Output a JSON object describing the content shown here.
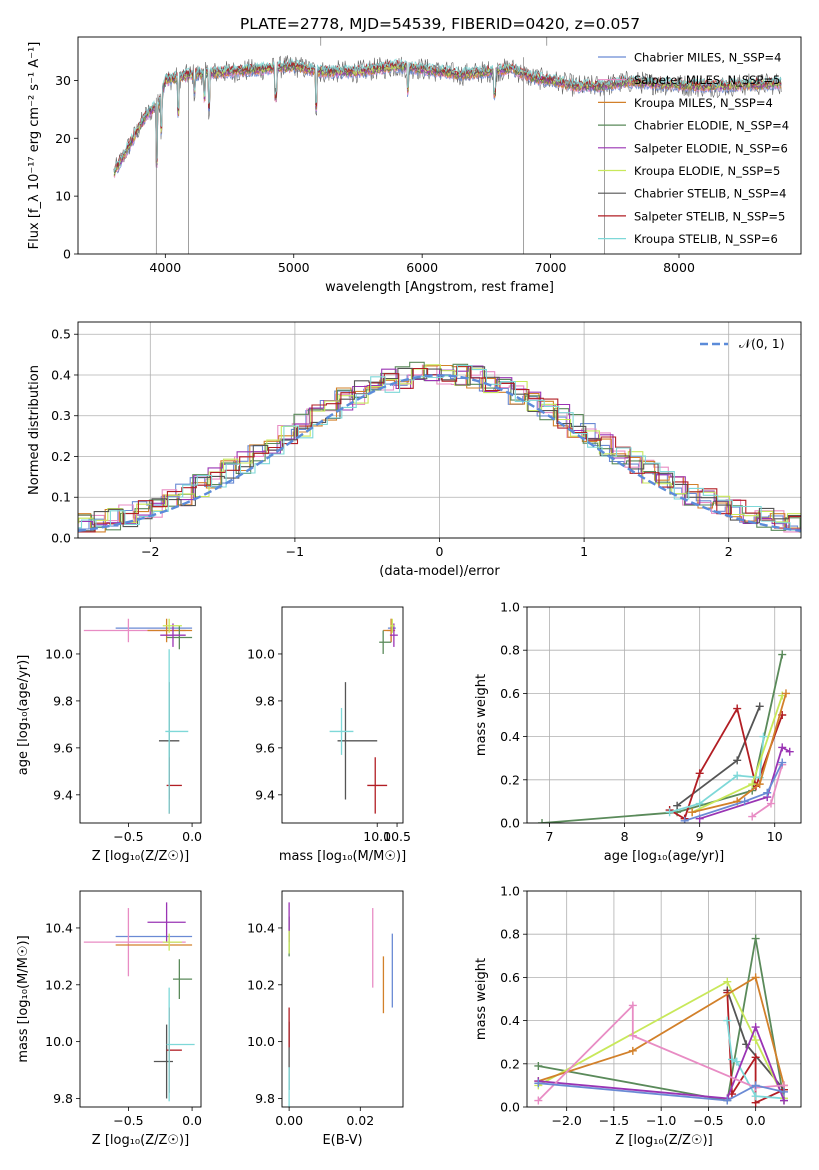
{
  "figure": {
    "title": "PLATE=2778, MJD=54539, FIBERID=0420, z=0.057"
  },
  "chart_data": [
    {
      "id": "spectrum",
      "type": "line",
      "xlabel": "wavelength [Angstrom, rest frame]",
      "ylabel": "Flux [f_λ 10⁻¹⁷ erg cm⁻² s⁻¹ A⁻¹]",
      "xlim": [
        3320,
        8950
      ],
      "ylim": [
        0,
        37.5
      ],
      "xticks": [
        4000,
        5000,
        6000,
        7000,
        8000
      ],
      "yticks": [
        0,
        10,
        20,
        30
      ],
      "grid": false,
      "legend_position": "top-right",
      "series": [
        {
          "name": "Chabrier MILES, N_SSP=4",
          "color": "#6a8ad4"
        },
        {
          "name": "Salpeter MILES, N_SSP=5",
          "color": "#e88cc4"
        },
        {
          "name": "Kroupa MILES, N_SSP=4",
          "color": "#d2802a"
        },
        {
          "name": "Chabrier ELODIE, N_SSP=4",
          "color": "#5a8a5a"
        },
        {
          "name": "Salpeter ELODIE, N_SSP=6",
          "color": "#9a34b4"
        },
        {
          "name": "Kroupa ELODIE, N_SSP=5",
          "color": "#c8e85a"
        },
        {
          "name": "Chabrier STELIB, N_SSP=4",
          "color": "#555555"
        },
        {
          "name": "Salpeter STELIB, N_SSP=5",
          "color": "#b21e24"
        },
        {
          "name": "Kroupa STELIB, N_SSP=6",
          "color": "#7ed8d8"
        }
      ],
      "continuum": [
        [
          3600,
          14
        ],
        [
          3750,
          20
        ],
        [
          3850,
          24
        ],
        [
          3950,
          26
        ],
        [
          4000,
          30
        ],
        [
          4200,
          31
        ],
        [
          4500,
          31.5
        ],
        [
          4800,
          32
        ],
        [
          5000,
          32.5
        ],
        [
          5200,
          31.5
        ],
        [
          5500,
          31.5
        ],
        [
          5800,
          32.5
        ],
        [
          6000,
          32
        ],
        [
          6300,
          31
        ],
        [
          6500,
          31.5
        ],
        [
          6700,
          32
        ],
        [
          6850,
          30.5
        ],
        [
          7000,
          30
        ],
        [
          7200,
          29
        ],
        [
          7400,
          29
        ],
        [
          7600,
          29.8
        ],
        [
          7900,
          29.3
        ],
        [
          8200,
          29
        ],
        [
          8500,
          29.2
        ],
        [
          8800,
          29.5
        ]
      ],
      "data_series_color": "#666666",
      "model_color": "#7ed8d8"
    },
    {
      "id": "residuals",
      "type": "histogram",
      "xlabel": "(data-model)/error",
      "ylabel": "Normed distribution",
      "xlim": [
        -2.5,
        2.5
      ],
      "ylim": [
        0,
        0.53
      ],
      "xticks": [
        -2,
        -1,
        0,
        1,
        2
      ],
      "yticks": [
        0.0,
        0.1,
        0.2,
        0.3,
        0.4,
        0.5
      ],
      "grid": true,
      "legend_position": "top-right",
      "legend": [
        {
          "name": "𝒩(0, 1)",
          "color": "#5b8bd9",
          "style": "dashed"
        }
      ],
      "bin_width": 0.1,
      "series_colors": [
        "#6a8ad4",
        "#e88cc4",
        "#d2802a",
        "#5a8a5a",
        "#9a34b4",
        "#c8e85a",
        "#555555",
        "#b21e24",
        "#7ed8d8"
      ]
    },
    {
      "id": "age-vs-Z",
      "type": "errorbar",
      "xlabel": "Z [log₁₀(Z/Z☉)]",
      "ylabel": "age  [log₁₀(age/yr)]",
      "xlim": [
        -0.88,
        0.07
      ],
      "ylim": [
        9.28,
        10.2
      ],
      "xticks": [
        -0.5,
        0.0
      ],
      "yticks": [
        9.4,
        9.6,
        9.8,
        10.0
      ],
      "points": [
        {
          "x": -0.3,
          "xerr_lo": 0.3,
          "xerr_hi": 0.3,
          "y": 10.11,
          "yerr": 0.0,
          "color": "#6a8ad4"
        },
        {
          "x": -0.5,
          "xerr_lo": 0.35,
          "xerr_hi": 0.45,
          "y": 10.1,
          "yerr": 0.05,
          "color": "#e88cc4"
        },
        {
          "x": -0.2,
          "xerr_lo": 0.15,
          "xerr_hi": 0.2,
          "y": 10.1,
          "yerr": 0.05,
          "color": "#d2802a"
        },
        {
          "x": -0.1,
          "xerr_lo": 0.1,
          "xerr_hi": 0.1,
          "y": 10.07,
          "yerr": 0.05,
          "color": "#5a8a5a"
        },
        {
          "x": -0.15,
          "xerr_lo": 0.1,
          "xerr_hi": 0.1,
          "y": 10.08,
          "yerr": 0.05,
          "color": "#9a34b4"
        },
        {
          "x": -0.18,
          "xerr_lo": 0.05,
          "xerr_hi": 0.1,
          "y": 10.12,
          "yerr": 0.03,
          "color": "#c8e85a"
        },
        {
          "x": -0.18,
          "xerr_lo": 0.08,
          "xerr_hi": 0.08,
          "y": 9.63,
          "yerr": 0.25,
          "color": "#555555"
        },
        {
          "x": -0.18,
          "xerr_lo": 0.02,
          "xerr_hi": 0.1,
          "y": 9.44,
          "yerr": 0.12,
          "color": "#b21e24"
        },
        {
          "x": -0.18,
          "xerr_lo": 0.03,
          "xerr_hi": 0.15,
          "y": 9.67,
          "yerr": 0.35,
          "color": "#7ed8d8"
        }
      ]
    },
    {
      "id": "age-vs-mass",
      "type": "errorbar",
      "xlabel": "mass [log₁₀(M/M☉)]",
      "ylabel": "",
      "xlim": [
        7.6,
        10.65
      ],
      "ylim": [
        9.28,
        10.2
      ],
      "xticks": [
        7.5,
        10.0,
        10.5
      ],
      "xticklabels": [
        "",
        "10.0",
        "10.5"
      ],
      "yticks": [
        9.4,
        9.6,
        9.8,
        10.0
      ],
      "points": [
        {
          "x": 10.37,
          "xerr_lo": 0.1,
          "xerr_hi": 0.1,
          "y": 10.11,
          "yerr": 0.0,
          "color": "#6a8ad4"
        },
        {
          "x": 10.35,
          "xerr_lo": 0.1,
          "xerr_hi": 0.1,
          "y": 10.1,
          "yerr": 0.05,
          "color": "#e88cc4"
        },
        {
          "x": 10.35,
          "xerr_lo": 0.2,
          "xerr_hi": 0.1,
          "y": 10.1,
          "yerr": 0.05,
          "color": "#d2802a"
        },
        {
          "x": 10.15,
          "xerr_lo": 0.1,
          "xerr_hi": 0.2,
          "y": 10.05,
          "yerr": 0.05,
          "color": "#5a8a5a"
        },
        {
          "x": 10.42,
          "xerr_lo": 0.1,
          "xerr_hi": 0.1,
          "y": 10.08,
          "yerr": 0.05,
          "color": "#9a34b4"
        },
        {
          "x": 10.38,
          "xerr_lo": 0.05,
          "xerr_hi": 0.05,
          "y": 10.12,
          "yerr": 0.03,
          "color": "#c8e85a"
        },
        {
          "x": 9.2,
          "xerr_lo": 0.2,
          "xerr_hi": 0.8,
          "y": 9.63,
          "yerr": 0.25,
          "color": "#555555"
        },
        {
          "x": 9.95,
          "xerr_lo": 0.2,
          "xerr_hi": 0.3,
          "y": 9.44,
          "yerr": 0.12,
          "color": "#b21e24"
        },
        {
          "x": 9.1,
          "xerr_lo": 0.3,
          "xerr_hi": 0.3,
          "y": 9.67,
          "yerr": 0.1,
          "color": "#7ed8d8"
        }
      ]
    },
    {
      "id": "weight-vs-age",
      "type": "line",
      "xlabel": "age  [log₁₀(age/yr)]",
      "ylabel": "mass weight",
      "xlim": [
        6.7,
        10.35
      ],
      "ylim": [
        0,
        1.0
      ],
      "xticks": [
        7,
        8,
        9,
        10
      ],
      "yticks": [
        0.0,
        0.2,
        0.4,
        0.6,
        0.8,
        1.0
      ],
      "grid": true,
      "series": [
        {
          "color": "#5a8a5a",
          "points": [
            [
              6.9,
              0
            ],
            [
              8.7,
              0.05
            ],
            [
              9.7,
              0.15
            ],
            [
              10.1,
              0.78
            ]
          ]
        },
        {
          "color": "#555555",
          "points": [
            [
              8.7,
              0.08
            ],
            [
              9.5,
              0.29
            ],
            [
              9.8,
              0.54
            ]
          ]
        },
        {
          "color": "#b21e24",
          "points": [
            [
              8.6,
              0.06
            ],
            [
              8.8,
              0.02
            ],
            [
              9.0,
              0.23
            ],
            [
              9.5,
              0.53
            ],
            [
              9.75,
              0.17
            ],
            [
              10.1,
              0.5
            ]
          ]
        },
        {
          "color": "#7ed8d8",
          "points": [
            [
              8.6,
              0.05
            ],
            [
              9.0,
              0.09
            ],
            [
              9.5,
              0.22
            ],
            [
              9.8,
              0.21
            ],
            [
              9.85,
              0.4
            ]
          ]
        },
        {
          "color": "#c8e85a",
          "points": [
            [
              8.9,
              0.05
            ],
            [
              9.7,
              0.18
            ],
            [
              10.1,
              0.59
            ]
          ]
        },
        {
          "color": "#d2802a",
          "points": [
            [
              8.9,
              0.05
            ],
            [
              9.5,
              0.1
            ],
            [
              9.8,
              0.18
            ],
            [
              10.15,
              0.6
            ]
          ]
        },
        {
          "color": "#9a34b4",
          "points": [
            [
              9.0,
              0.02
            ],
            [
              9.9,
              0.12
            ],
            [
              10.1,
              0.35
            ],
            [
              10.2,
              0.33
            ]
          ]
        },
        {
          "color": "#e88cc4",
          "points": [
            [
              9.7,
              0.03
            ],
            [
              9.95,
              0.09
            ],
            [
              10.1,
              0.27
            ]
          ]
        },
        {
          "color": "#6a8ad4",
          "points": [
            [
              8.8,
              0.01
            ],
            [
              9.6,
              0.1
            ],
            [
              9.9,
              0.14
            ],
            [
              10.1,
              0.28
            ]
          ]
        }
      ]
    },
    {
      "id": "mass-vs-Z",
      "type": "errorbar",
      "xlabel": "Z [log₁₀(Z/Z☉)]",
      "ylabel": "mass [log₁₀(M/M☉)]",
      "xlim": [
        -0.88,
        0.07
      ],
      "ylim": [
        9.77,
        10.53
      ],
      "xticks": [
        -0.5,
        0.0
      ],
      "yticks": [
        9.8,
        10.0,
        10.2,
        10.4
      ],
      "points": [
        {
          "x": -0.3,
          "xerr_lo": 0.3,
          "xerr_hi": 0.3,
          "y": 10.37,
          "yerr": 0.0,
          "color": "#6a8ad4"
        },
        {
          "x": -0.5,
          "xerr_lo": 0.35,
          "xerr_hi": 0.45,
          "y": 10.35,
          "yerr": 0.12,
          "color": "#e88cc4"
        },
        {
          "x": -0.3,
          "xerr_lo": 0.3,
          "xerr_hi": 0.3,
          "y": 10.34,
          "yerr": 0.0,
          "color": "#d2802a"
        },
        {
          "x": -0.1,
          "xerr_lo": 0.05,
          "xerr_hi": 0.1,
          "y": 10.22,
          "yerr": 0.07,
          "color": "#5a8a5a"
        },
        {
          "x": -0.2,
          "xerr_lo": 0.15,
          "xerr_hi": 0.15,
          "y": 10.42,
          "yerr": 0.07,
          "color": "#9a34b4"
        },
        {
          "x": -0.18,
          "xerr_lo": 0.05,
          "xerr_hi": 0.1,
          "y": 10.35,
          "yerr": 0.03,
          "color": "#c8e85a"
        },
        {
          "x": -0.2,
          "xerr_lo": 0.1,
          "xerr_hi": 0.05,
          "y": 9.93,
          "yerr": 0.13,
          "color": "#555555"
        },
        {
          "x": -0.18,
          "xerr_lo": 0.02,
          "xerr_hi": 0.1,
          "y": 9.97,
          "yerr": 0.15,
          "color": "#b21e24"
        },
        {
          "x": -0.18,
          "xerr_lo": 0.02,
          "xerr_hi": 0.2,
          "y": 9.99,
          "yerr": 0.2,
          "color": "#7ed8d8"
        }
      ]
    },
    {
      "id": "mass-vs-ebv",
      "type": "errorbar",
      "xlabel": "E(B-V)",
      "ylabel": "",
      "xlim": [
        -0.002,
        0.032
      ],
      "ylim": [
        9.77,
        10.53
      ],
      "xticks": [
        0.0,
        0.02
      ],
      "xticklabels": [
        "0.00",
        "0.02"
      ],
      "yticks": [
        9.8,
        10.0,
        10.2,
        10.4
      ],
      "points": [
        {
          "x": 0.029,
          "xerr_lo": 0,
          "xerr_hi": 0,
          "y": 10.25,
          "yerr": 0.13,
          "color": "#6a8ad4"
        },
        {
          "x": 0.0235,
          "xerr_lo": 0,
          "xerr_hi": 0,
          "y": 10.33,
          "yerr": 0.14,
          "color": "#e88cc4"
        },
        {
          "x": 0.0265,
          "xerr_lo": 0,
          "xerr_hi": 0,
          "y": 10.2,
          "yerr": 0.1,
          "color": "#d2802a"
        },
        {
          "x": 0.0,
          "xerr_lo": 0,
          "xerr_hi": 0,
          "y": 10.37,
          "yerr": 0.07,
          "color": "#5a8a5a"
        },
        {
          "x": 0.0,
          "xerr_lo": 0,
          "xerr_hi": 0,
          "y": 10.42,
          "yerr": 0.07,
          "color": "#9a34b4"
        },
        {
          "x": 0.0,
          "xerr_lo": 0,
          "xerr_hi": 0,
          "y": 10.35,
          "yerr": 0.04,
          "color": "#c8e85a"
        },
        {
          "x": 0.0,
          "xerr_lo": 0,
          "xerr_hi": 0,
          "y": 9.95,
          "yerr": 0.12,
          "color": "#555555"
        },
        {
          "x": 0.0,
          "xerr_lo": 0,
          "xerr_hi": 0,
          "y": 10.05,
          "yerr": 0.07,
          "color": "#b21e24"
        },
        {
          "x": 0.0,
          "xerr_lo": 0,
          "xerr_hi": 0,
          "y": 9.83,
          "yerr": 0.08,
          "color": "#7ed8d8"
        }
      ]
    },
    {
      "id": "weight-vs-Z",
      "type": "line",
      "xlabel": "Z [log₁₀(Z/Z☉)]",
      "ylabel": "mass weight",
      "xlim": [
        -2.42,
        0.48
      ],
      "ylim": [
        0,
        1.0
      ],
      "xticks": [
        -2.0,
        -1.5,
        -1.0,
        -0.5,
        0.0
      ],
      "yticks": [
        0.0,
        0.2,
        0.4,
        0.6,
        0.8,
        1.0
      ],
      "grid": true,
      "series": [
        {
          "color": "#5a8a5a",
          "points": [
            [
              -2.3,
              0.19
            ],
            [
              -0.3,
              0.03
            ],
            [
              0.0,
              0.78
            ],
            [
              0.3,
              0.03
            ]
          ]
        },
        {
          "color": "#555555",
          "points": [
            [
              -0.3,
              0.54
            ],
            [
              -0.1,
              0.29
            ],
            [
              0.3,
              0.08
            ]
          ]
        },
        {
          "color": "#b21e24",
          "points": [
            [
              -0.3,
              0.53
            ],
            [
              -0.25,
              0.06
            ],
            [
              0.0,
              0.23
            ],
            [
              0.0,
              0.02
            ],
            [
              0.3,
              0.08
            ]
          ]
        },
        {
          "color": "#7ed8d8",
          "points": [
            [
              -0.3,
              0.4
            ],
            [
              -0.25,
              0.22
            ],
            [
              -0.2,
              0.21
            ],
            [
              0.0,
              0.05
            ],
            [
              0.3,
              0.04
            ]
          ]
        },
        {
          "color": "#c8e85a",
          "points": [
            [
              -2.3,
              0.1
            ],
            [
              -0.3,
              0.58
            ],
            [
              0.0,
              0.31
            ],
            [
              0.3,
              0.04
            ]
          ]
        },
        {
          "color": "#d2802a",
          "points": [
            [
              -2.3,
              0.12
            ],
            [
              -1.3,
              0.26
            ],
            [
              0.0,
              0.6
            ],
            [
              0.3,
              0.1
            ]
          ]
        },
        {
          "color": "#9a34b4",
          "points": [
            [
              -2.3,
              0.12
            ],
            [
              -0.3,
              0.04
            ],
            [
              0.0,
              0.37
            ],
            [
              0.3,
              0.03
            ]
          ]
        },
        {
          "color": "#e88cc4",
          "points": [
            [
              -2.3,
              0.03
            ],
            [
              -1.3,
              0.47
            ],
            [
              -1.3,
              0.33
            ],
            [
              0.0,
              0.09
            ],
            [
              0.3,
              0.1
            ]
          ]
        },
        {
          "color": "#6a8ad4",
          "points": [
            [
              -2.3,
              0.11
            ],
            [
              -0.3,
              0.03
            ],
            [
              0.0,
              0.1
            ],
            [
              0.3,
              0.07
            ]
          ]
        }
      ]
    }
  ]
}
